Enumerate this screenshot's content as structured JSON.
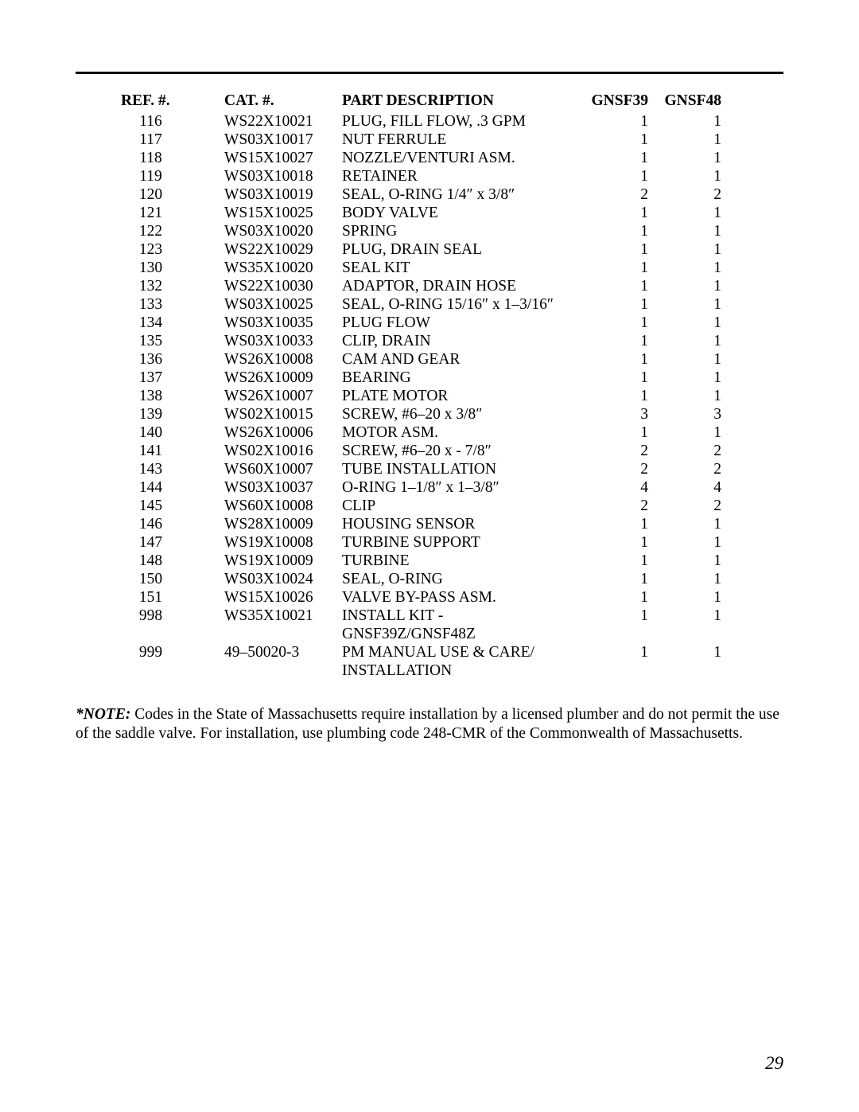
{
  "table": {
    "headers": {
      "ref": "REF. #.",
      "cat": "CAT. #.",
      "desc": "PART DESCRIPTION",
      "q1": "GNSF39",
      "q2": "GNSF48"
    },
    "rows": [
      {
        "ref": "116",
        "cat": "WS22X10021",
        "desc": "PLUG, FILL FLOW, .3 GPM",
        "q1": "1",
        "q2": "1"
      },
      {
        "ref": "117",
        "cat": "WS03X10017",
        "desc": "NUT FERRULE",
        "q1": "1",
        "q2": "1"
      },
      {
        "ref": "118",
        "cat": "WS15X10027",
        "desc": "NOZZLE/VENTURI ASM.",
        "q1": "1",
        "q2": "1"
      },
      {
        "ref": "119",
        "cat": "WS03X10018",
        "desc": "RETAINER",
        "q1": "1",
        "q2": "1"
      },
      {
        "ref": "120",
        "cat": "WS03X10019",
        "desc": "SEAL, O-RING 1/4″ x 3/8″",
        "q1": "2",
        "q2": "2"
      },
      {
        "ref": "121",
        "cat": "WS15X10025",
        "desc": "BODY VALVE",
        "q1": "1",
        "q2": "1"
      },
      {
        "ref": "122",
        "cat": "WS03X10020",
        "desc": "SPRING",
        "q1": "1",
        "q2": "1"
      },
      {
        "ref": "123",
        "cat": "WS22X10029",
        "desc": "PLUG, DRAIN SEAL",
        "q1": "1",
        "q2": "1"
      },
      {
        "ref": "130",
        "cat": "WS35X10020",
        "desc": "SEAL KIT",
        "q1": "1",
        "q2": "1"
      },
      {
        "ref": "132",
        "cat": "WS22X10030",
        "desc": "ADAPTOR, DRAIN HOSE",
        "q1": "1",
        "q2": "1"
      },
      {
        "ref": "133",
        "cat": "WS03X10025",
        "desc": "SEAL, O-RING 15/16″ x 1–3/16″",
        "q1": "1",
        "q2": "1"
      },
      {
        "ref": "134",
        "cat": "WS03X10035",
        "desc": "PLUG FLOW",
        "q1": "1",
        "q2": "1"
      },
      {
        "ref": "135",
        "cat": "WS03X10033",
        "desc": "CLIP, DRAIN",
        "q1": "1",
        "q2": "1"
      },
      {
        "ref": "136",
        "cat": "WS26X10008",
        "desc": "CAM AND GEAR",
        "q1": "1",
        "q2": "1"
      },
      {
        "ref": "137",
        "cat": "WS26X10009",
        "desc": "BEARING",
        "q1": "1",
        "q2": "1"
      },
      {
        "ref": "138",
        "cat": "WS26X10007",
        "desc": "PLATE MOTOR",
        "q1": "1",
        "q2": "1"
      },
      {
        "ref": "139",
        "cat": "WS02X10015",
        "desc": "SCREW, #6–20 x 3/8″",
        "q1": "3",
        "q2": "3"
      },
      {
        "ref": "140",
        "cat": "WS26X10006",
        "desc": "MOTOR ASM.",
        "q1": "1",
        "q2": "1"
      },
      {
        "ref": "141",
        "cat": "WS02X10016",
        "desc": "SCREW, #6–20 x - 7/8″",
        "q1": "2",
        "q2": "2"
      },
      {
        "ref": "143",
        "cat": "WS60X10007",
        "desc": "TUBE INSTALLATION",
        "q1": "2",
        "q2": "2"
      },
      {
        "ref": "144",
        "cat": "WS03X10037",
        "desc": "O-RING 1–1/8″ x 1–3/8″",
        "q1": "4",
        "q2": "4"
      },
      {
        "ref": "145",
        "cat": "WS60X10008",
        "desc": "CLIP",
        "q1": "2",
        "q2": "2"
      },
      {
        "ref": "146",
        "cat": "WS28X10009",
        "desc": "HOUSING SENSOR",
        "q1": "1",
        "q2": "1"
      },
      {
        "ref": "147",
        "cat": "WS19X10008",
        "desc": "TURBINE SUPPORT",
        "q1": "1",
        "q2": "1"
      },
      {
        "ref": "148",
        "cat": "WS19X10009",
        "desc": "TURBINE",
        "q1": "1",
        "q2": "1"
      },
      {
        "ref": "150",
        "cat": "WS03X10024",
        "desc": "SEAL, O-RING",
        "q1": "1",
        "q2": "1"
      },
      {
        "ref": "151",
        "cat": "WS15X10026",
        "desc": "VALVE BY-PASS ASM.",
        "q1": "1",
        "q2": "1"
      },
      {
        "ref": "998",
        "cat": "WS35X10021",
        "desc": "INSTALL KIT - GNSF39Z/GNSF48Z",
        "q1": "1",
        "q2": "1"
      },
      {
        "ref": "999",
        "cat": "49–50020-3",
        "desc": "PM MANUAL USE & CARE/ INSTALLATION",
        "q1": "1",
        "q2": "1"
      }
    ]
  },
  "note": {
    "label": "*NOTE:",
    "text": " Codes in the State of Massachusetts require installation by a licensed plumber and do not permit the use of the saddle valve. For installation, use plumbing code 248-CMR of the Commonwealth of Massachusetts."
  },
  "page_number": "29"
}
